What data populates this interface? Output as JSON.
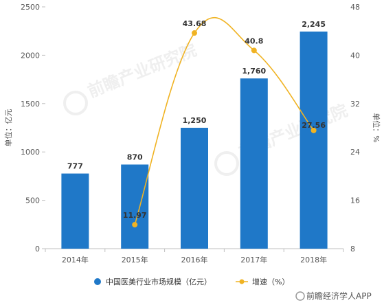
{
  "chart_data": {
    "type": "bar+line",
    "categories": [
      "2014年",
      "2015年",
      "2016年",
      "2017年",
      "2018年"
    ],
    "series": [
      {
        "name": "中国医美行业市场规模（亿元）",
        "type": "bar",
        "axis": "left",
        "values": [
          777,
          870,
          1250,
          1760,
          2245
        ],
        "labels": [
          "777",
          "870",
          "1,250",
          "1,760",
          "2,245"
        ],
        "color": "#1F78C8"
      },
      {
        "name": "增速（%）",
        "type": "line",
        "axis": "right",
        "values": [
          null,
          11.97,
          43.68,
          40.8,
          27.56
        ],
        "labels": [
          "",
          "11.97",
          "43.68",
          "40.8",
          "27.56"
        ],
        "color": "#F0B323"
      }
    ],
    "ylabel_left": "单位：亿元",
    "ylabel_right": "单位：%",
    "ylim_left": [
      0,
      2500
    ],
    "yticks_left": [
      "0",
      "500",
      "1000",
      "1500",
      "2000",
      "2500"
    ],
    "ylim_right": [
      8,
      48
    ],
    "yticks_right": [
      "8",
      "16",
      "24",
      "32",
      "40",
      "48"
    ],
    "grid": false,
    "legend": "bottom-center"
  },
  "watermark": {
    "text": "前瞻产业研究院",
    "source": "前瞻经济学人APP"
  }
}
